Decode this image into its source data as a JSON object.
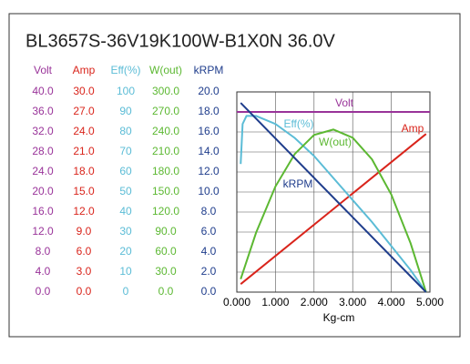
{
  "chart_data": {
    "type": "line",
    "title": "BL3657S-36V19K100W-B1X0N   36.0V",
    "x_label": "Kg-cm",
    "xlim": [
      0,
      5
    ],
    "xticks": [
      {
        "value": 0,
        "label": "0.000"
      },
      {
        "value": 1,
        "label": "1.000"
      },
      {
        "value": 2,
        "label": "2.000"
      },
      {
        "value": 3,
        "label": "3.000"
      },
      {
        "value": 4,
        "label": "4.000"
      },
      {
        "value": 5,
        "label": "5.000"
      }
    ],
    "grid": true,
    "series": [
      {
        "name": "Volt",
        "color": "#993399",
        "ylim": [
          0,
          40
        ],
        "yticks": [
          {
            "value": 0,
            "label": "0.0"
          },
          {
            "value": 4,
            "label": "4.0"
          },
          {
            "value": 8,
            "label": "8.0"
          },
          {
            "value": 12,
            "label": "12.0"
          },
          {
            "value": 16,
            "label": "16.0"
          },
          {
            "value": 20,
            "label": "20.0"
          },
          {
            "value": 24,
            "label": "24.0"
          },
          {
            "value": 28,
            "label": "28.0"
          },
          {
            "value": 32,
            "label": "32.0"
          },
          {
            "value": 36,
            "label": "36.0"
          },
          {
            "value": 40,
            "label": "40.0"
          }
        ],
        "x": [
          0,
          5
        ],
        "values": [
          36,
          36
        ]
      },
      {
        "name": "Amp",
        "color": "#d9241b",
        "ylim": [
          0,
          30
        ],
        "yticks": [
          {
            "value": 0,
            "label": "0.0"
          },
          {
            "value": 3,
            "label": "3.0"
          },
          {
            "value": 6,
            "label": "6.0"
          },
          {
            "value": 9,
            "label": "9.0"
          },
          {
            "value": 12,
            "label": "12.0"
          },
          {
            "value": 15,
            "label": "15.0"
          },
          {
            "value": 18,
            "label": "18.0"
          },
          {
            "value": 21,
            "label": "21.0"
          },
          {
            "value": 24,
            "label": "24.0"
          },
          {
            "value": 27,
            "label": "27.0"
          },
          {
            "value": 30,
            "label": "30.0"
          }
        ],
        "x": [
          0.1,
          4.9
        ],
        "values": [
          1.2,
          23.7
        ]
      },
      {
        "name": "Eff(%)",
        "color": "#5bbcd6",
        "ylim": [
          0,
          100
        ],
        "yticks": [
          0,
          10,
          20,
          30,
          40,
          50,
          60,
          70,
          80,
          90,
          100
        ],
        "x": [
          0.1,
          0.15,
          0.25,
          0.5,
          1,
          1.5,
          2,
          2.5,
          3,
          3.5,
          4,
          4.5,
          4.9
        ],
        "values": [
          64,
          84,
          88,
          88,
          84,
          77,
          68,
          57,
          46,
          35,
          23,
          11,
          0
        ]
      },
      {
        "name": "W(out)",
        "color": "#5cb832",
        "ylim": [
          0,
          300
        ],
        "yticks": [
          {
            "value": 0,
            "label": "0.0"
          },
          {
            "value": 30,
            "label": "30.0"
          },
          {
            "value": 60,
            "label": "60.0"
          },
          {
            "value": 90,
            "label": "90.0"
          },
          {
            "value": 120,
            "label": "120.0"
          },
          {
            "value": 150,
            "label": "150.0"
          },
          {
            "value": 180,
            "label": "180.0"
          },
          {
            "value": 210,
            "label": "210.0"
          },
          {
            "value": 240,
            "label": "240.0"
          },
          {
            "value": 270,
            "label": "270.0"
          },
          {
            "value": 300,
            "label": "300.0"
          }
        ],
        "x": [
          0.1,
          0.5,
          1,
          1.5,
          2,
          2.5,
          3,
          3.5,
          4,
          4.5,
          4.9
        ],
        "values": [
          19.5,
          89.3,
          158.3,
          207,
          235.5,
          243.6,
          231.4,
          198.9,
          146.2,
          73.1,
          0
        ]
      },
      {
        "name": "kRPM",
        "color": "#1f3d8c",
        "ylim": [
          0,
          20
        ],
        "yticks": [
          {
            "value": 0,
            "label": "0.0"
          },
          {
            "value": 2,
            "label": "2.0"
          },
          {
            "value": 4,
            "label": "4.0"
          },
          {
            "value": 6,
            "label": "6.0"
          },
          {
            "value": 8,
            "label": "8.0"
          },
          {
            "value": 10,
            "label": "10.0"
          },
          {
            "value": 12,
            "label": "12.0"
          },
          {
            "value": 14,
            "label": "14.0"
          },
          {
            "value": 16,
            "label": "16.0"
          },
          {
            "value": 18,
            "label": "18.0"
          },
          {
            "value": 20,
            "label": "20.0"
          }
        ],
        "x": [
          0.1,
          4.9
        ],
        "values": [
          18.9,
          0
        ]
      }
    ]
  }
}
